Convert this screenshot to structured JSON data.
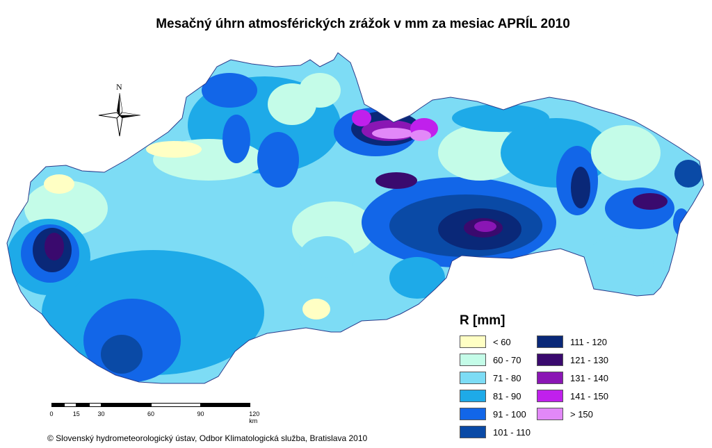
{
  "title": "Mesačný úhrn atmosférických zrážok v mm za mesiac APRÍL 2010",
  "legend": {
    "title": "R [mm]",
    "items": [
      {
        "label": "< 60",
        "color": "#ffffc4"
      },
      {
        "label": "60 - 70",
        "color": "#c4fce8"
      },
      {
        "label": "71 - 80",
        "color": "#7ddcf5"
      },
      {
        "label": "81 - 90",
        "color": "#1eaae8"
      },
      {
        "label": "91 - 100",
        "color": "#1266e8"
      },
      {
        "label": "101 - 110",
        "color": "#0a4aa6"
      },
      {
        "label": "111 - 120",
        "color": "#0a2878"
      },
      {
        "label": "121 - 130",
        "color": "#3a0a6e"
      },
      {
        "label": "131 - 140",
        "color": "#8a16b4"
      },
      {
        "label": "141 - 150",
        "color": "#c020ec"
      },
      {
        "label": "> 150",
        "color": "#e288f8"
      }
    ]
  },
  "north_arrow": {
    "letter": "N",
    "icon": "compass-rose-icon"
  },
  "scale_bar": {
    "unit": "km",
    "ticks": [
      "0",
      "15",
      "30",
      "60",
      "90",
      "120 km"
    ],
    "tick_values": [
      0,
      15,
      30,
      60,
      90,
      120
    ]
  },
  "copyright": "© Slovenský hydrometeorologický ústav, Odbor Klimatologická služba, Bratislava 2010"
}
